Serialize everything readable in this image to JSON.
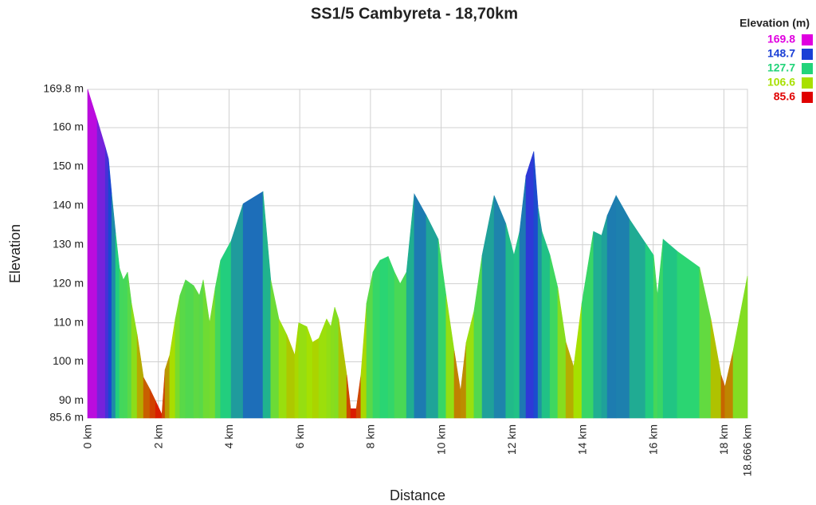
{
  "chart_data": {
    "type": "elevation-area",
    "title": "SS1/5 Cambyreta - 18,70km",
    "x_label": "Distance",
    "y_label": "Elevation",
    "xlim": [
      0,
      18.666
    ],
    "ylim": [
      85.6,
      169.8
    ],
    "xticks": [
      {
        "value": 0,
        "label": "0 km"
      },
      {
        "value": 2,
        "label": "2 km"
      },
      {
        "value": 4,
        "label": "4 km"
      },
      {
        "value": 6,
        "label": "6 km"
      },
      {
        "value": 8,
        "label": "8 km"
      },
      {
        "value": 10,
        "label": "10 km"
      },
      {
        "value": 12,
        "label": "12 km"
      },
      {
        "value": 14,
        "label": "14 km"
      },
      {
        "value": 16,
        "label": "16 km"
      },
      {
        "value": 18,
        "label": "18 km"
      },
      {
        "value": 18.666,
        "label": "18.666 km"
      }
    ],
    "yticks": [
      {
        "value": 85.6,
        "label": "85.6 m"
      },
      {
        "value": 90,
        "label": "90 m"
      },
      {
        "value": 100,
        "label": "100 m"
      },
      {
        "value": 110,
        "label": "110 m"
      },
      {
        "value": 120,
        "label": "120 m"
      },
      {
        "value": 130,
        "label": "130 m"
      },
      {
        "value": 140,
        "label": "140 m"
      },
      {
        "value": 150,
        "label": "150 m"
      },
      {
        "value": 160,
        "label": "160 m"
      },
      {
        "value": 169.8,
        "label": "169.8 m"
      }
    ],
    "grid": true,
    "legend": {
      "title": "Elevation (m)",
      "position": "top-right",
      "stops": [
        {
          "value": 169.8,
          "color": "#e000e0"
        },
        {
          "value": 148.7,
          "color": "#1a3fd6"
        },
        {
          "value": 127.7,
          "color": "#22d47a"
        },
        {
          "value": 106.6,
          "color": "#a8e000"
        },
        {
          "value": 85.6,
          "color": "#e00000"
        }
      ]
    },
    "x": [
      0,
      0.27,
      0.5,
      0.59,
      0.68,
      0.79,
      0.9,
      1.01,
      1.13,
      1.24,
      1.4,
      1.58,
      1.76,
      1.92,
      2.1,
      2.19,
      2.32,
      2.48,
      2.61,
      2.77,
      3.0,
      3.16,
      3.27,
      3.45,
      3.61,
      3.76,
      4.06,
      4.4,
      4.96,
      5.18,
      5.41,
      5.63,
      5.86,
      5.97,
      6.2,
      6.36,
      6.54,
      6.76,
      6.88,
      6.99,
      7.1,
      7.33,
      7.44,
      7.6,
      7.73,
      7.89,
      8.07,
      8.27,
      8.5,
      8.68,
      8.84,
      9.02,
      9.24,
      9.58,
      9.92,
      10.14,
      10.37,
      10.55,
      10.71,
      10.93,
      11.16,
      11.5,
      11.83,
      12.06,
      12.22,
      12.4,
      12.62,
      12.74,
      12.85,
      13.08,
      13.3,
      13.53,
      13.75,
      13.98,
      14.31,
      14.54,
      14.7,
      14.95,
      15.33,
      15.78,
      16.01,
      16.12,
      16.28,
      16.68,
      17.31,
      17.63,
      17.92,
      18.03,
      18.26,
      18.666
    ],
    "values": [
      169.8,
      162,
      155,
      152,
      143,
      133,
      124,
      121,
      123,
      115,
      107,
      96,
      93,
      90,
      86.5,
      98,
      101.7,
      111,
      117,
      121,
      119.5,
      117,
      121,
      110,
      119,
      126,
      131,
      140.5,
      143.6,
      121,
      111,
      107,
      101.7,
      110,
      109,
      105,
      106,
      111,
      109,
      114,
      111,
      96.6,
      88,
      88,
      96.6,
      115,
      123,
      126,
      127,
      123,
      120,
      123,
      143,
      137.5,
      131.4,
      117,
      102.8,
      92.5,
      105,
      113,
      127.3,
      142.6,
      135.4,
      127.3,
      133.4,
      147.7,
      153.9,
      139.7,
      133.4,
      127.3,
      119,
      105,
      98.7,
      115,
      133.4,
      132.4,
      137.5,
      142.6,
      136.5,
      130.4,
      127.3,
      117,
      131.4,
      128.3,
      124.2,
      111,
      96.6,
      93.6,
      102.8,
      122
    ]
  }
}
